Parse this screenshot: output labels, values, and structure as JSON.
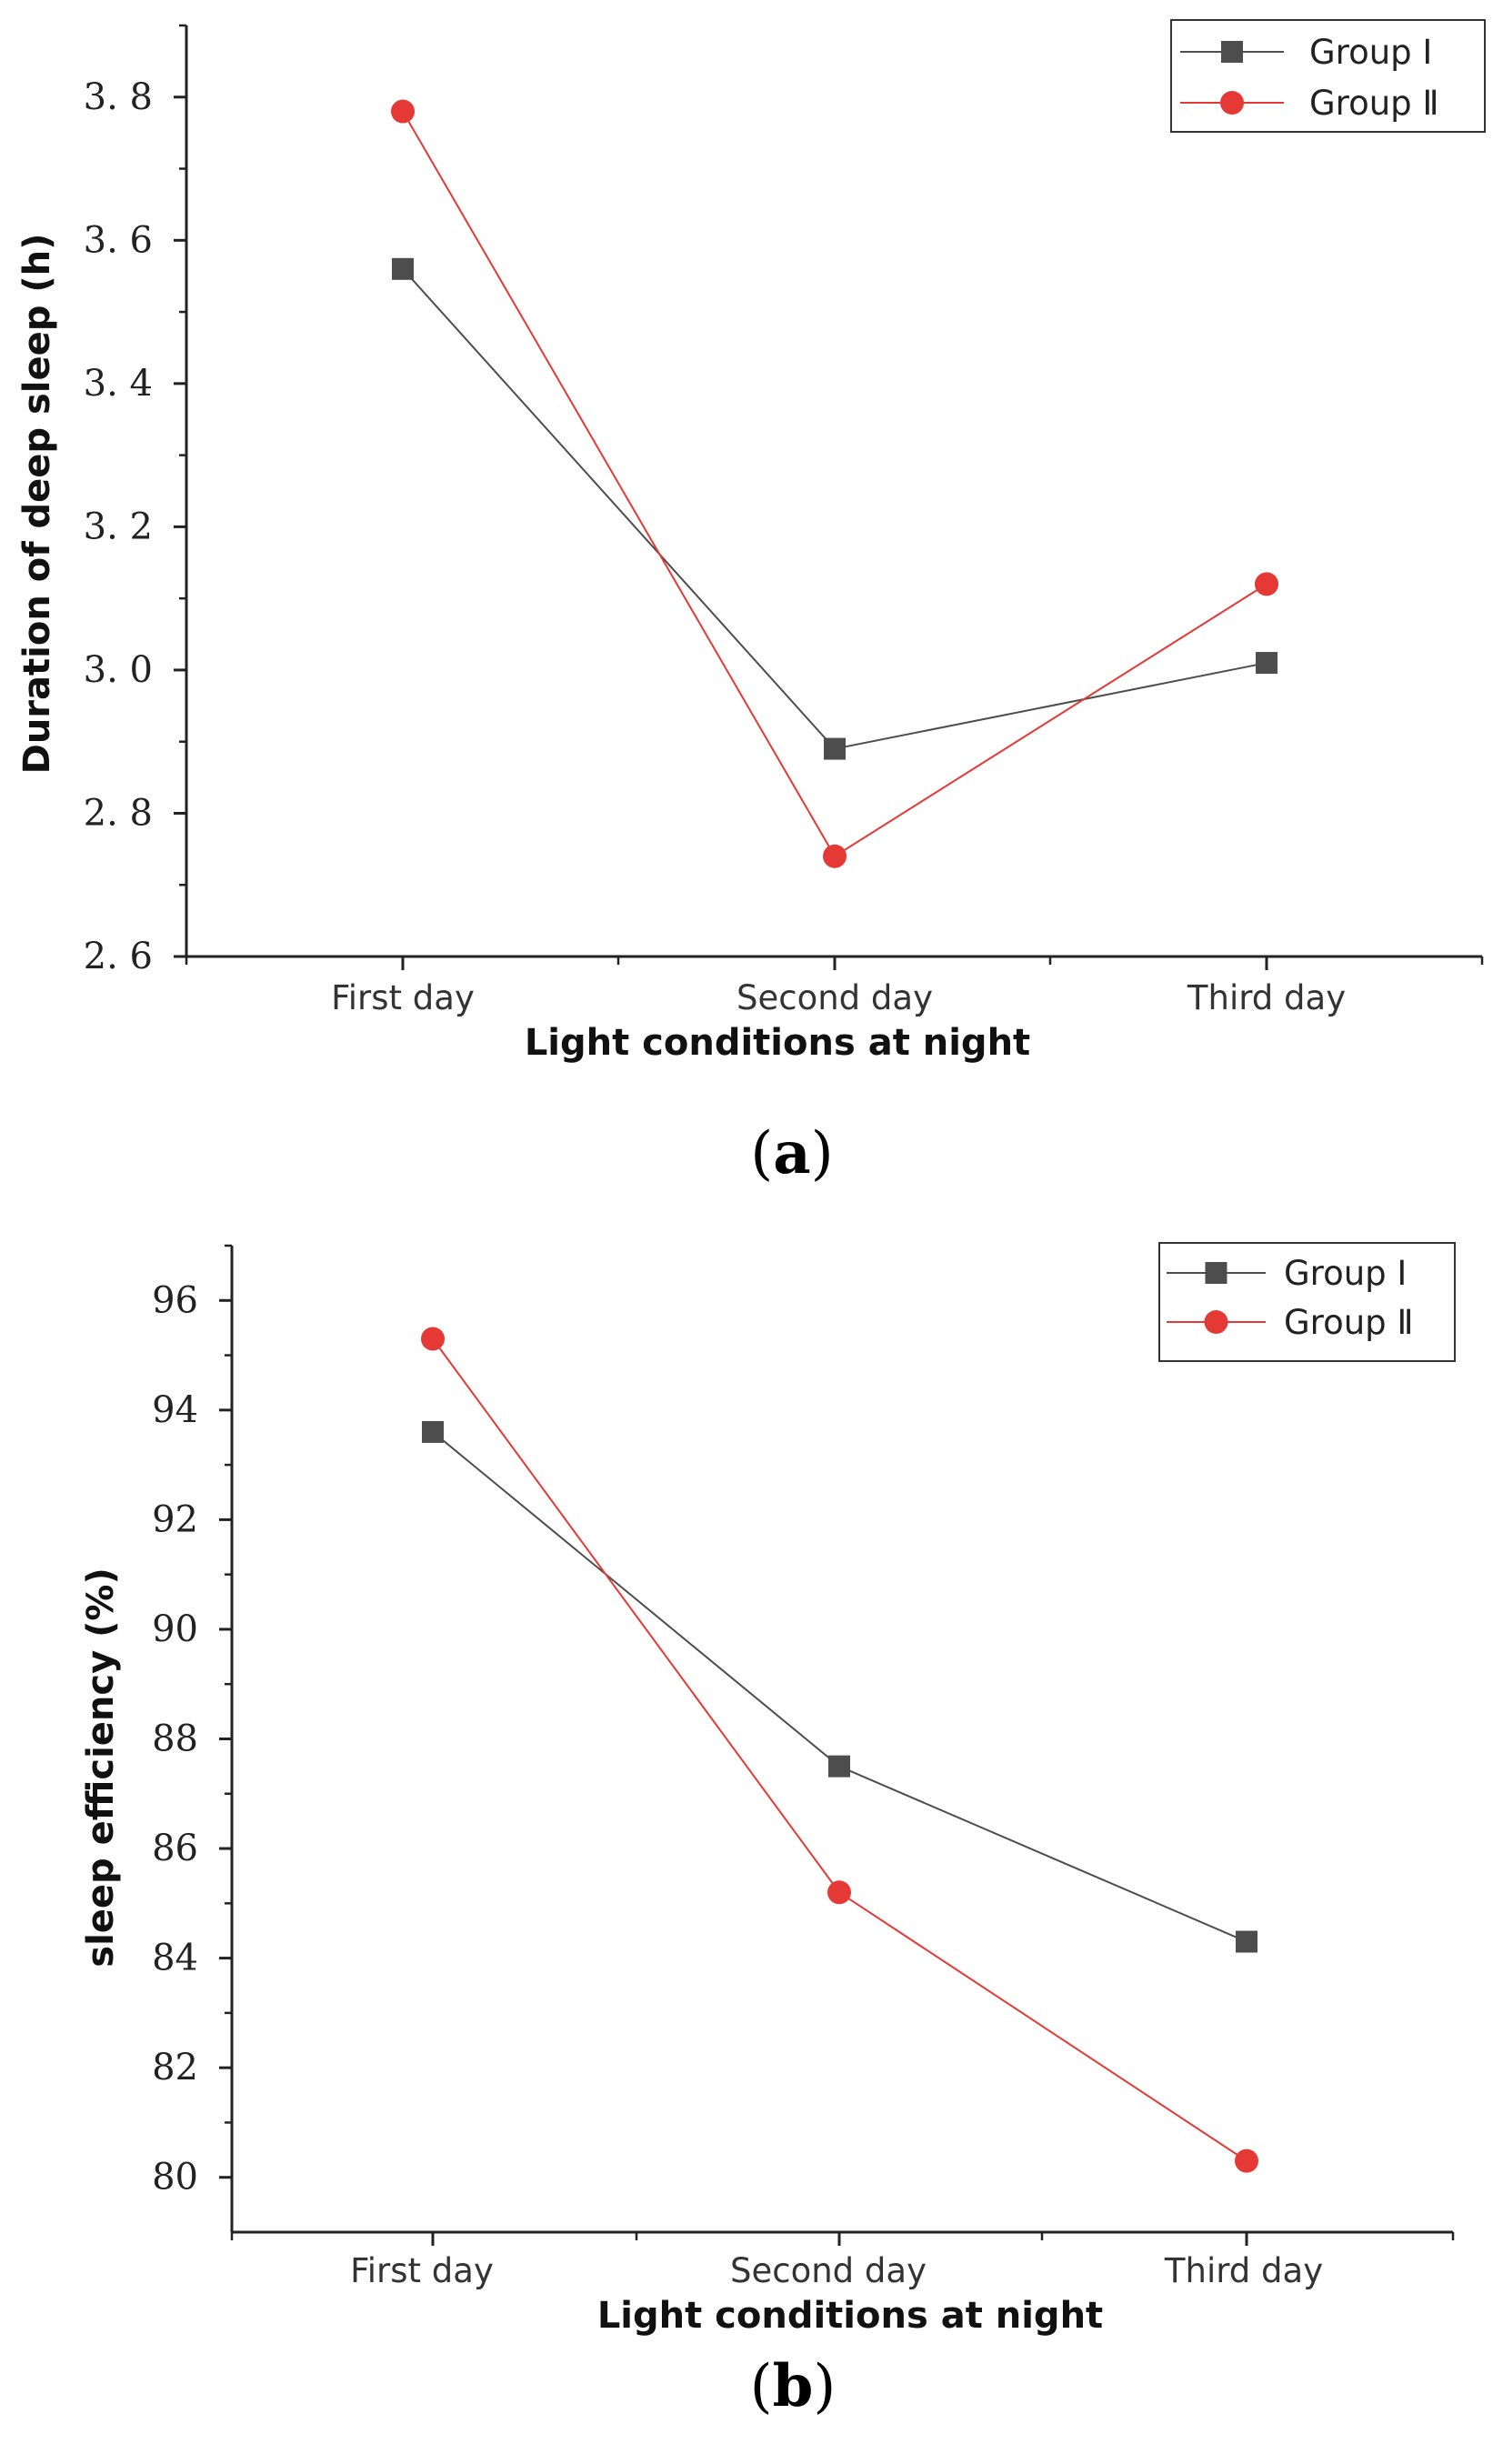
{
  "chart_data": [
    {
      "type": "line",
      "panel_label": "(a)",
      "panel_label_parts": {
        "open": "(",
        "letter": "a",
        "close": ")"
      },
      "categories": [
        "First day",
        "Second day",
        "Third day"
      ],
      "series": [
        {
          "name": "Group Ⅰ",
          "color": "#4d4d4d",
          "marker": "square",
          "values": [
            3.56,
            2.89,
            3.01
          ]
        },
        {
          "name": "Group Ⅱ",
          "color": "#e53935",
          "marker": "circle",
          "values": [
            3.78,
            2.74,
            3.12
          ]
        }
      ],
      "xlabel": "Light conditions at night",
      "ylabel": "Duration of deep sleep  (h)",
      "ylim": [
        2.6,
        3.9
      ],
      "yticks": [
        2.6,
        2.8,
        3.0,
        3.2,
        3.4,
        3.6,
        3.8
      ],
      "ytick_labels": [
        "2. 6",
        "2. 8",
        "3. 0",
        "3. 2",
        "3. 4",
        "3. 6",
        "3. 8"
      ],
      "legend": "top-right",
      "grid": false
    },
    {
      "type": "line",
      "panel_label": "(b)",
      "panel_label_parts": {
        "open": "(",
        "letter": "b",
        "close": ")"
      },
      "categories": [
        "First day",
        "Second day",
        "Third day"
      ],
      "series": [
        {
          "name": "Group Ⅰ",
          "color": "#4d4d4d",
          "marker": "square",
          "values": [
            93.6,
            87.5,
            84.3
          ]
        },
        {
          "name": "Group Ⅱ",
          "color": "#e53935",
          "marker": "circle",
          "values": [
            95.3,
            85.2,
            80.3
          ]
        }
      ],
      "xlabel": "Light conditions at night",
      "ylabel": "sleep efficiency  (%)",
      "ylim": [
        79,
        97
      ],
      "yticks": [
        80,
        82,
        84,
        86,
        88,
        90,
        92,
        94,
        96
      ],
      "ytick_labels": [
        "80",
        "82",
        "84",
        "86",
        "88",
        "90",
        "92",
        "94",
        "96"
      ],
      "legend": "top-right",
      "grid": false
    }
  ]
}
